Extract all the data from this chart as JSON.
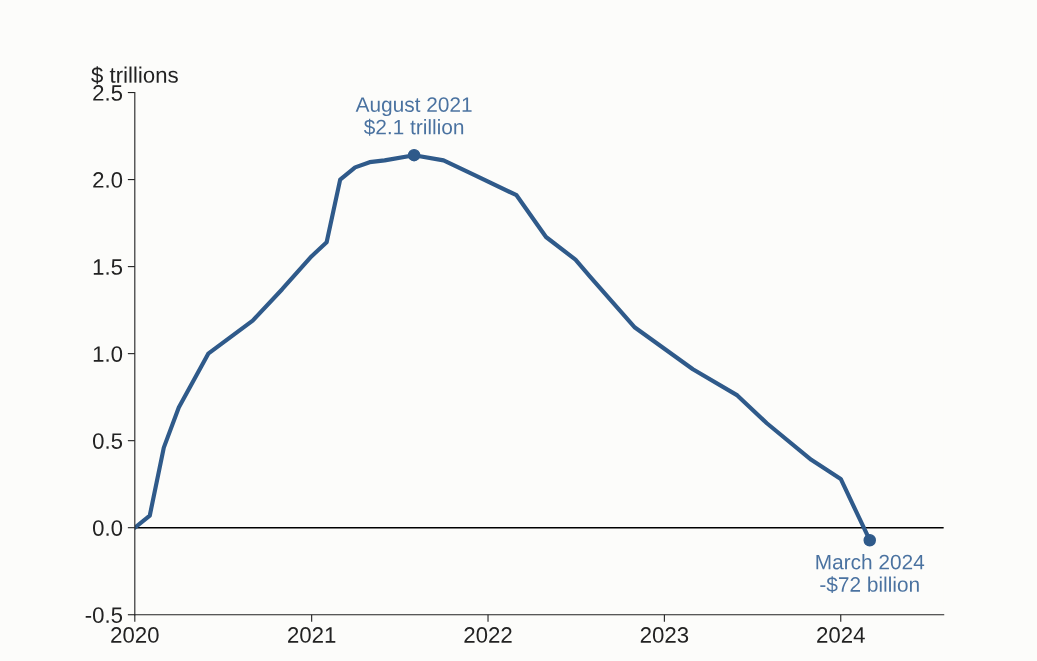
{
  "chart_data": {
    "type": "line",
    "ylabel": "$ trillions",
    "x": [
      "2020-01",
      "2020-02",
      "2020-03",
      "2020-04",
      "2020-06",
      "2020-09",
      "2020-11",
      "2021-01",
      "2021-02",
      "2021-03",
      "2021-04",
      "2021-05",
      "2021-06",
      "2021-08",
      "2021-10",
      "2021-12",
      "2022-03",
      "2022-05",
      "2022-07",
      "2022-08",
      "2022-11",
      "2023-03",
      "2023-06",
      "2023-08",
      "2023-11",
      "2024-01",
      "2024-03"
    ],
    "series": [
      {
        "color": "#2f5a8a",
        "values": [
          0,
          0.07,
          0.46,
          0.69,
          1.0,
          1.19,
          1.37,
          1.56,
          1.64,
          2.0,
          2.07,
          2.1,
          2.11,
          2.14,
          2.11,
          2.03,
          1.91,
          1.67,
          1.54,
          1.44,
          1.15,
          0.91,
          0.76,
          0.6,
          0.39,
          0.28,
          -0.072
        ]
      }
    ],
    "xlim": [
      "2020-01-01",
      "2024-08-01"
    ],
    "xticks": [
      "2020",
      "2021",
      "2022",
      "2023",
      "2024"
    ],
    "ylim": [
      -0.5,
      2.5
    ],
    "yticks": [
      -0.5,
      {
        "value": 0,
        "label": "0.0"
      },
      0.5,
      {
        "value": 1,
        "label": "1.0"
      },
      1.5,
      {
        "value": 2,
        "label": "2.0"
      },
      2.5
    ],
    "grid": false,
    "legend": false,
    "ref_lines": [
      {
        "axis": "y",
        "value": 0,
        "color": "#000000"
      }
    ],
    "annotations": [
      {
        "text": "August 2021\n$2.1 trillion",
        "x": "2021-08",
        "y": 2.14
      },
      {
        "text": "March 2024\n-$72 billion",
        "x": "2024-03",
        "y": -0.072
      }
    ]
  }
}
